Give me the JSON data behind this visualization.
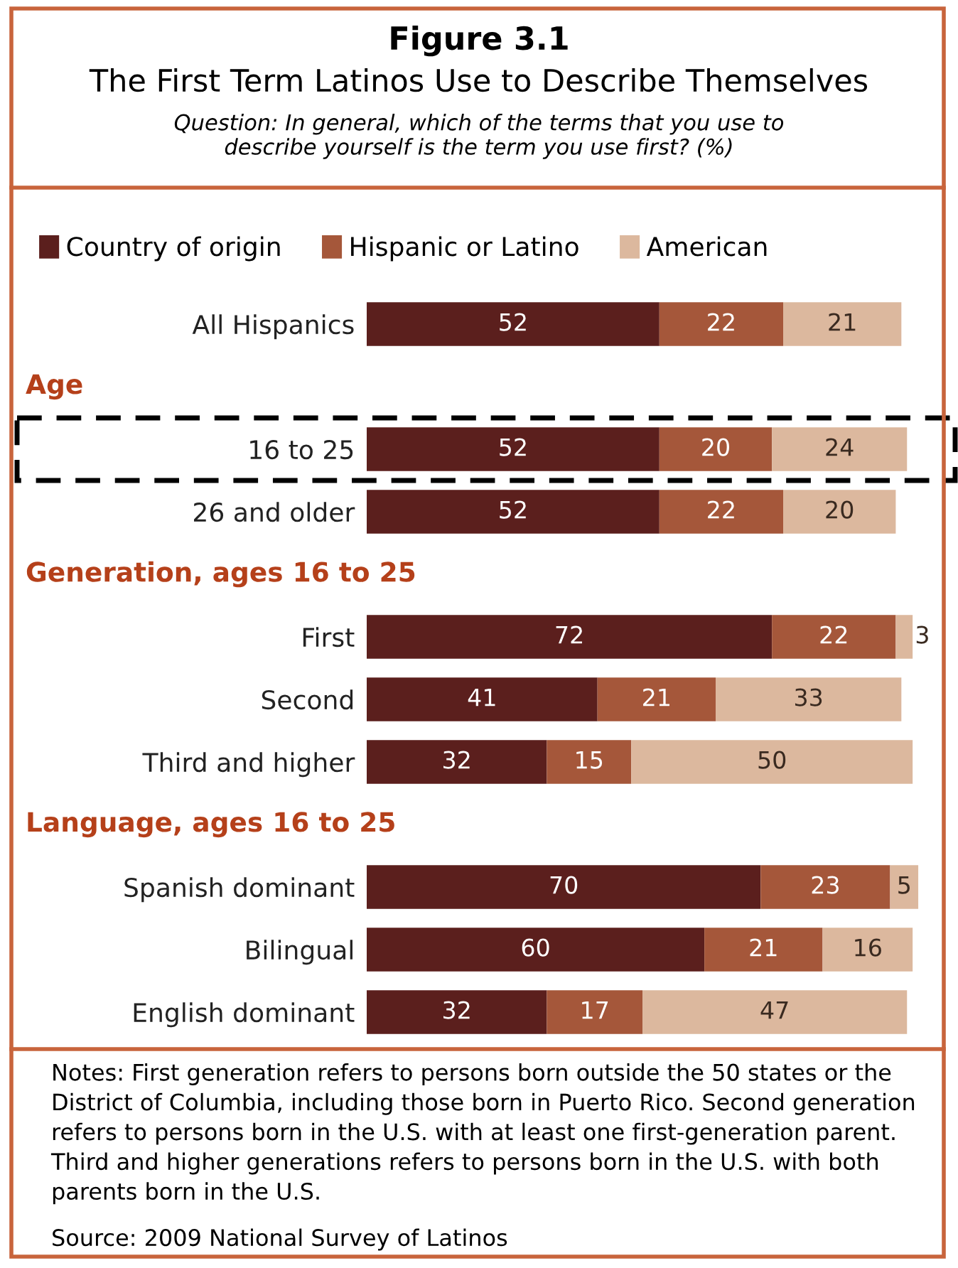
{
  "chart_data": [
    {
      "type": "bar",
      "orientation": "horizontal",
      "stacked": true,
      "data_labels": true,
      "legend": "top left",
      "title": "Figure 3.1",
      "subtitle": "The First Term Latinos Use to Describe Themselves",
      "annotations": [
        "Question: In general, which of the terms that you use to\ndescribe yourself is the term you use first? (%)"
      ],
      "categories": [
        "All Hispanics"
      ],
      "series": [
        {
          "name": "Country of origin",
          "color": "#5b1f1d",
          "values": [
            52
          ]
        },
        {
          "name": "Hispanic or Latino",
          "color": "#a5573a",
          "values": [
            22
          ]
        },
        {
          "name": "American",
          "color": "#dcb89e",
          "values": [
            21
          ]
        }
      ]
    },
    {
      "type": "bar",
      "orientation": "horizontal",
      "stacked": true,
      "data_labels": true,
      "title": "Age",
      "categories": [
        "16 to 25",
        "26 and older"
      ],
      "series": [
        {
          "color": "#5b1f1d",
          "values": [
            52,
            52
          ]
        },
        {
          "color": "#a5573a",
          "values": [
            20,
            22
          ]
        },
        {
          "color": "#dcb89e",
          "values": [
            24,
            20
          ]
        }
      ]
    },
    {
      "type": "bar",
      "orientation": "horizontal",
      "stacked": true,
      "data_labels": true,
      "title": "Generation, ages 16 to 25",
      "categories": [
        "First",
        "Second",
        "Third and higher"
      ],
      "series": [
        {
          "color": "#5b1f1d",
          "values": [
            72,
            41,
            32
          ]
        },
        {
          "color": "#a5573a",
          "values": [
            22,
            21,
            15
          ]
        },
        {
          "color": "#dcb89e",
          "values": [
            3,
            33,
            50
          ]
        }
      ]
    },
    {
      "type": "bar",
      "orientation": "horizontal",
      "stacked": true,
      "data_labels": true,
      "title": "Language, ages 16 to 25",
      "categories": [
        "Spanish dominant",
        "Bilingual",
        "English dominant"
      ],
      "series": [
        {
          "color": "#5b1f1d",
          "values": [
            70,
            60,
            32
          ]
        },
        {
          "color": "#a5573a",
          "values": [
            23,
            21,
            17
          ]
        },
        {
          "color": "#dcb89e",
          "values": [
            5,
            16,
            47
          ]
        }
      ],
      "annotations": [
        "Notes: First generation refers to persons born outside the 50 states or the District of Columbia, including those born in Puerto Rico. Second generation refers to persons born in the U.S. with at least one first-generation parent. Third and higher generations refers to persons born in the U.S. with both parents born in the U.S.",
        "Source: 2009 National Survey of Latinos"
      ]
    }
  ]
}
